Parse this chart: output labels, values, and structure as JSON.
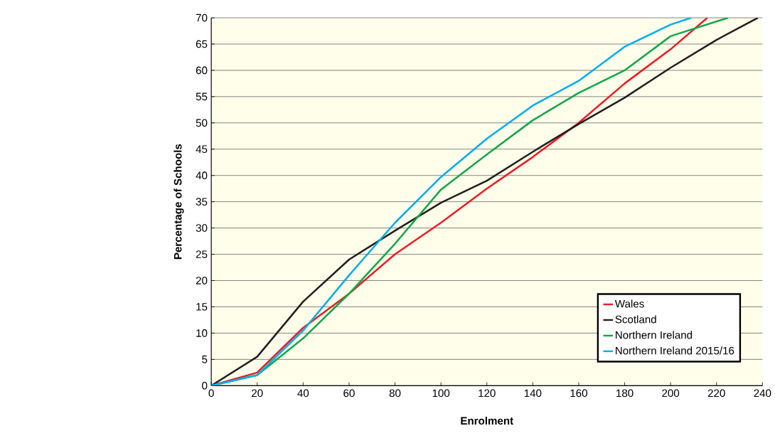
{
  "chart_data": {
    "type": "line",
    "xlabel": "Enrolment",
    "ylabel": "Percentage of Schools",
    "xlim": [
      0,
      240
    ],
    "xticks": [
      0,
      20,
      40,
      60,
      80,
      100,
      120,
      140,
      160,
      180,
      200,
      220,
      240
    ],
    "ylim": [
      0,
      70
    ],
    "yticks": [
      0,
      5,
      10,
      15,
      20,
      25,
      30,
      35,
      40,
      45,
      50,
      55,
      60,
      65,
      70
    ],
    "grid": "y",
    "legend": "bottom right",
    "line_style": "solid",
    "series": [
      {
        "name": "Wales",
        "color": "#ee1c25",
        "x": [
          0,
          20,
          40,
          60,
          80,
          100,
          120,
          140,
          160,
          180,
          200,
          216
        ],
        "values": [
          0,
          2.5,
          11,
          17.5,
          25,
          31,
          37.5,
          43.5,
          50,
          57.5,
          64,
          70
        ]
      },
      {
        "name": "Scotland",
        "color": "#231f20",
        "x": [
          0,
          20,
          40,
          60,
          80,
          100,
          120,
          140,
          160,
          180,
          200,
          220,
          238
        ],
        "values": [
          0,
          5.5,
          16,
          24,
          29.5,
          34.8,
          39,
          44.5,
          49.8,
          54.8,
          60.5,
          65.8,
          70
        ]
      },
      {
        "name": "Northern Ireland",
        "color": "#12a84a",
        "x": [
          0,
          20,
          40,
          60,
          80,
          100,
          120,
          140,
          160,
          180,
          200,
          225
        ],
        "values": [
          0,
          2,
          9,
          17.5,
          27,
          37.3,
          44,
          50.5,
          55.7,
          60,
          66.5,
          70
        ]
      },
      {
        "name": "Northern Ireland 2015/16",
        "color": "#00aeef",
        "x": [
          0,
          20,
          40,
          60,
          80,
          100,
          120,
          140,
          160,
          180,
          200,
          209
        ],
        "values": [
          0,
          2,
          10.5,
          21,
          31,
          39.7,
          47,
          53.3,
          58,
          64.5,
          68.7,
          70
        ]
      }
    ]
  }
}
